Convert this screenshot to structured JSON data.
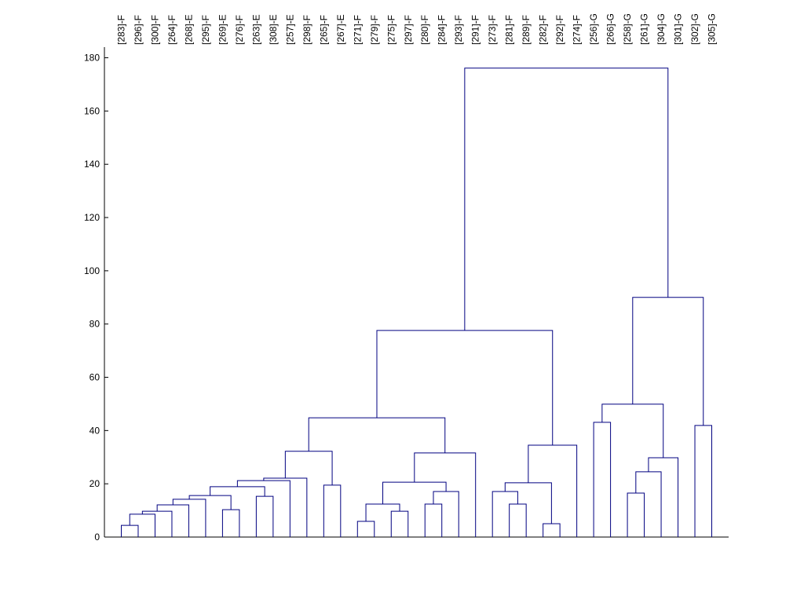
{
  "chart_data": {
    "type": "dendrogram",
    "leaves": [
      "[283]-F",
      "[296]-F",
      "[300]-F",
      "[264]-F",
      "[268]-E",
      "[295]-F",
      "[269]-E",
      "[276]-F",
      "[263]-E",
      "[308]-E",
      "[257]-E",
      "[298]-F",
      "[265]-F",
      "[267]-E",
      "[271]-F",
      "[279]-F",
      "[275]-F",
      "[297]-F",
      "[280]-F",
      "[284]-F",
      "[293]-F",
      "[291]-F",
      "[273]-F",
      "[281]-F",
      "[289]-F",
      "[282]-F",
      "[292]-F",
      "[274]-F",
      "[256]-G",
      "[266]-G",
      "[258]-G",
      "[261]-G",
      "[304]-G",
      "[301]-G",
      "[302]-G",
      "[305]-G"
    ],
    "merges": [
      [
        0,
        1,
        4.4
      ],
      [
        36,
        2,
        8.6
      ],
      [
        37,
        3,
        9.7
      ],
      [
        38,
        4,
        12.1
      ],
      [
        39,
        5,
        14.2
      ],
      [
        6,
        7,
        10.3
      ],
      [
        40,
        41,
        15.6
      ],
      [
        8,
        9,
        15.3
      ],
      [
        42,
        43,
        18.9
      ],
      [
        44,
        10,
        21.2
      ],
      [
        45,
        11,
        22.1
      ],
      [
        12,
        13,
        19.5
      ],
      [
        46,
        47,
        32.2
      ],
      [
        14,
        15,
        5.9
      ],
      [
        16,
        17,
        9.7
      ],
      [
        49,
        50,
        12.4
      ],
      [
        18,
        19,
        12.4
      ],
      [
        52,
        20,
        17.1
      ],
      [
        51,
        53,
        20.6
      ],
      [
        54,
        21,
        31.6
      ],
      [
        48,
        55,
        44.8
      ],
      [
        23,
        24,
        12.4
      ],
      [
        22,
        57,
        17.1
      ],
      [
        25,
        26,
        5.0
      ],
      [
        58,
        59,
        20.4
      ],
      [
        60,
        27,
        34.5
      ],
      [
        56,
        61,
        77.6
      ],
      [
        28,
        29,
        43.1
      ],
      [
        30,
        31,
        16.5
      ],
      [
        64,
        32,
        24.5
      ],
      [
        65,
        33,
        29.8
      ],
      [
        63,
        66,
        49.9
      ],
      [
        34,
        35,
        41.9
      ],
      [
        67,
        68,
        90.0
      ],
      [
        62,
        69,
        176.1
      ]
    ],
    "color": "#000080",
    "ylim": [
      0,
      184
    ],
    "yticks": [
      0,
      20,
      40,
      60,
      80,
      100,
      120,
      140,
      160,
      180
    ]
  }
}
